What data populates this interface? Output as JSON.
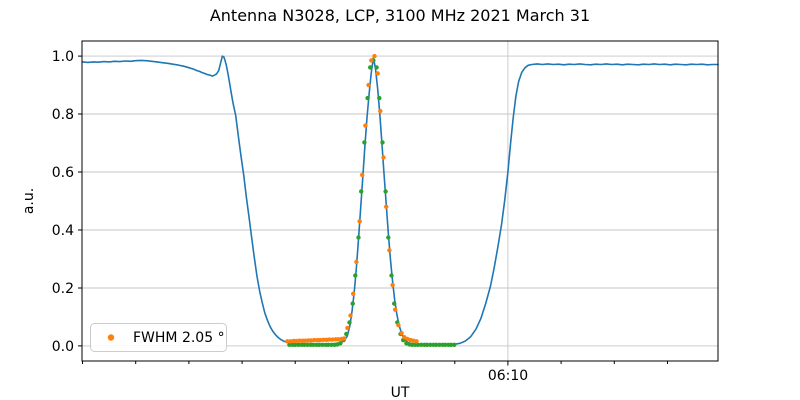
{
  "chart_data": {
    "type": "line",
    "title": "Antenna N3028, LCP, 3100 MHz 2021 March 31",
    "xlabel": "UT",
    "ylabel": "a.u.",
    "x_unit": "minutes after 06:00 UT",
    "xlim": [
      1.99,
      13.95
    ],
    "ylim": [
      -0.052,
      1.052
    ],
    "grid": true,
    "x_ticks_minutes": [
      2,
      3,
      4,
      5,
      6,
      7,
      8,
      9,
      10,
      11,
      12,
      13
    ],
    "x_major_tick": {
      "minute": 10,
      "label": "06:10"
    },
    "y_ticks": [
      0.0,
      0.2,
      0.4,
      0.6,
      0.8,
      1.0
    ],
    "y_tick_labels": [
      "0.0",
      "0.2",
      "0.4",
      "0.6",
      "0.8",
      "1.0"
    ],
    "legend": {
      "label": "FWHM 2.05 °",
      "marker_color": "#ff7f0e",
      "position": "lower left"
    },
    "colors": {
      "signal": "#1f77b4",
      "fit_samples": "#2ca02c",
      "measured_samples": "#ff7f0e",
      "grid": "#c6c6c6",
      "spine": "#000000"
    },
    "series": [
      {
        "name": "drift-scan-signal",
        "kind": "line",
        "color": "#1f77b4",
        "points": [
          [
            2.0,
            0.98
          ],
          [
            2.1,
            0.978
          ],
          [
            2.2,
            0.98
          ],
          [
            2.3,
            0.979
          ],
          [
            2.4,
            0.981
          ],
          [
            2.5,
            0.98
          ],
          [
            2.6,
            0.982
          ],
          [
            2.7,
            0.981
          ],
          [
            2.8,
            0.983
          ],
          [
            2.9,
            0.982
          ],
          [
            3.0,
            0.984
          ],
          [
            3.1,
            0.985
          ],
          [
            3.2,
            0.984
          ],
          [
            3.3,
            0.982
          ],
          [
            3.4,
            0.98
          ],
          [
            3.5,
            0.977
          ],
          [
            3.6,
            0.975
          ],
          [
            3.7,
            0.972
          ],
          [
            3.8,
            0.969
          ],
          [
            3.9,
            0.965
          ],
          [
            4.0,
            0.96
          ],
          [
            4.05,
            0.957
          ],
          [
            4.1,
            0.954
          ],
          [
            4.15,
            0.95
          ],
          [
            4.2,
            0.947
          ],
          [
            4.25,
            0.943
          ],
          [
            4.3,
            0.94
          ],
          [
            4.35,
            0.936
          ],
          [
            4.4,
            0.934
          ],
          [
            4.44,
            0.931
          ],
          [
            4.48,
            0.934
          ],
          [
            4.52,
            0.938
          ],
          [
            4.56,
            0.95
          ],
          [
            4.59,
            0.972
          ],
          [
            4.63,
            1.0
          ],
          [
            4.66,
            0.996
          ],
          [
            4.7,
            0.972
          ],
          [
            4.74,
            0.935
          ],
          [
            4.79,
            0.88
          ],
          [
            4.83,
            0.838
          ],
          [
            4.88,
            0.795
          ],
          [
            4.93,
            0.725
          ],
          [
            4.98,
            0.655
          ],
          [
            5.03,
            0.59
          ],
          [
            5.08,
            0.515
          ],
          [
            5.13,
            0.445
          ],
          [
            5.18,
            0.375
          ],
          [
            5.23,
            0.305
          ],
          [
            5.28,
            0.24
          ],
          [
            5.33,
            0.19
          ],
          [
            5.38,
            0.148
          ],
          [
            5.43,
            0.113
          ],
          [
            5.48,
            0.087
          ],
          [
            5.53,
            0.066
          ],
          [
            5.58,
            0.05
          ],
          [
            5.63,
            0.038
          ],
          [
            5.68,
            0.029
          ],
          [
            5.73,
            0.022
          ],
          [
            5.78,
            0.017
          ],
          [
            5.83,
            0.013
          ],
          [
            5.88,
            0.01
          ],
          [
            5.95,
            0.008
          ],
          [
            6.05,
            0.007
          ],
          [
            6.15,
            0.006
          ],
          [
            6.25,
            0.005
          ],
          [
            6.35,
            0.005
          ],
          [
            6.45,
            0.005
          ],
          [
            6.55,
            0.006
          ],
          [
            6.65,
            0.007
          ],
          [
            6.75,
            0.008
          ],
          [
            6.82,
            0.01
          ],
          [
            6.88,
            0.014
          ],
          [
            6.93,
            0.02
          ],
          [
            6.98,
            0.035
          ],
          [
            7.03,
            0.072
          ],
          [
            7.07,
            0.122
          ],
          [
            7.11,
            0.188
          ],
          [
            7.15,
            0.27
          ],
          [
            7.19,
            0.368
          ],
          [
            7.23,
            0.472
          ],
          [
            7.27,
            0.582
          ],
          [
            7.31,
            0.69
          ],
          [
            7.35,
            0.788
          ],
          [
            7.39,
            0.872
          ],
          [
            7.43,
            0.944
          ],
          [
            7.47,
            0.995
          ],
          [
            7.51,
            0.956
          ],
          [
            7.55,
            0.886
          ],
          [
            7.59,
            0.8
          ],
          [
            7.63,
            0.7
          ],
          [
            7.67,
            0.595
          ],
          [
            7.71,
            0.49
          ],
          [
            7.75,
            0.39
          ],
          [
            7.79,
            0.3
          ],
          [
            7.83,
            0.222
          ],
          [
            7.87,
            0.158
          ],
          [
            7.91,
            0.11
          ],
          [
            7.95,
            0.074
          ],
          [
            7.99,
            0.048
          ],
          [
            8.03,
            0.03
          ],
          [
            8.08,
            0.018
          ],
          [
            8.13,
            0.011
          ],
          [
            8.2,
            0.007
          ],
          [
            8.3,
            0.005
          ],
          [
            8.45,
            0.004
          ],
          [
            8.6,
            0.004
          ],
          [
            8.75,
            0.004
          ],
          [
            8.9,
            0.005
          ],
          [
            9.0,
            0.006
          ],
          [
            9.1,
            0.009
          ],
          [
            9.2,
            0.017
          ],
          [
            9.3,
            0.032
          ],
          [
            9.4,
            0.058
          ],
          [
            9.49,
            0.094
          ],
          [
            9.58,
            0.145
          ],
          [
            9.67,
            0.205
          ],
          [
            9.74,
            0.268
          ],
          [
            9.81,
            0.34
          ],
          [
            9.88,
            0.42
          ],
          [
            9.94,
            0.505
          ],
          [
            10.0,
            0.6
          ],
          [
            10.05,
            0.7
          ],
          [
            10.1,
            0.79
          ],
          [
            10.15,
            0.862
          ],
          [
            10.2,
            0.912
          ],
          [
            10.26,
            0.944
          ],
          [
            10.32,
            0.96
          ],
          [
            10.38,
            0.968
          ],
          [
            10.45,
            0.971
          ],
          [
            10.55,
            0.973
          ],
          [
            10.65,
            0.971
          ],
          [
            10.75,
            0.973
          ],
          [
            10.85,
            0.971
          ],
          [
            10.95,
            0.972
          ],
          [
            11.05,
            0.97
          ],
          [
            11.15,
            0.972
          ],
          [
            11.25,
            0.971
          ],
          [
            11.35,
            0.973
          ],
          [
            11.45,
            0.971
          ],
          [
            11.55,
            0.97
          ],
          [
            11.65,
            0.972
          ],
          [
            11.75,
            0.971
          ],
          [
            11.85,
            0.973
          ],
          [
            11.95,
            0.971
          ],
          [
            12.05,
            0.972
          ],
          [
            12.15,
            0.97
          ],
          [
            12.25,
            0.972
          ],
          [
            12.35,
            0.971
          ],
          [
            12.45,
            0.97
          ],
          [
            12.55,
            0.972
          ],
          [
            12.65,
            0.971
          ],
          [
            12.75,
            0.973
          ],
          [
            12.85,
            0.971
          ],
          [
            12.95,
            0.972
          ],
          [
            13.05,
            0.97
          ],
          [
            13.15,
            0.972
          ],
          [
            13.25,
            0.971
          ],
          [
            13.35,
            0.97
          ],
          [
            13.45,
            0.972
          ],
          [
            13.55,
            0.971
          ],
          [
            13.65,
            0.972
          ],
          [
            13.75,
            0.97
          ],
          [
            13.85,
            0.971
          ],
          [
            13.95,
            0.971
          ]
        ]
      },
      {
        "name": "gaussian-fit-samples",
        "kind": "scatter",
        "color": "#2ca02c",
        "points": [
          [
            5.89,
            0.004
          ],
          [
            5.95,
            0.004
          ],
          [
            6.0,
            0.004
          ],
          [
            6.06,
            0.004
          ],
          [
            6.12,
            0.004
          ],
          [
            6.17,
            0.004
          ],
          [
            6.23,
            0.004
          ],
          [
            6.29,
            0.004
          ],
          [
            6.34,
            0.004
          ],
          [
            6.4,
            0.004
          ],
          [
            6.45,
            0.004
          ],
          [
            6.51,
            0.004
          ],
          [
            6.57,
            0.004
          ],
          [
            6.62,
            0.004
          ],
          [
            6.68,
            0.004
          ],
          [
            6.74,
            0.004
          ],
          [
            6.79,
            0.005
          ],
          [
            6.85,
            0.009
          ],
          [
            6.91,
            0.02
          ],
          [
            6.96,
            0.041
          ],
          [
            7.02,
            0.081
          ],
          [
            7.08,
            0.146
          ],
          [
            7.13,
            0.243
          ],
          [
            7.19,
            0.374
          ],
          [
            7.24,
            0.533
          ],
          [
            7.3,
            0.702
          ],
          [
            7.36,
            0.855
          ],
          [
            7.41,
            0.961
          ],
          [
            7.47,
            0.985
          ],
          [
            7.53,
            0.961
          ],
          [
            7.58,
            0.855
          ],
          [
            7.64,
            0.702
          ],
          [
            7.7,
            0.533
          ],
          [
            7.75,
            0.374
          ],
          [
            7.81,
            0.243
          ],
          [
            7.86,
            0.146
          ],
          [
            7.92,
            0.081
          ],
          [
            7.98,
            0.041
          ],
          [
            8.03,
            0.02
          ],
          [
            8.09,
            0.009
          ],
          [
            8.15,
            0.005
          ],
          [
            8.2,
            0.004
          ],
          [
            8.26,
            0.004
          ],
          [
            8.31,
            0.004
          ],
          [
            8.37,
            0.004
          ],
          [
            8.43,
            0.004
          ],
          [
            8.48,
            0.004
          ],
          [
            8.54,
            0.004
          ],
          [
            8.6,
            0.004
          ],
          [
            8.65,
            0.004
          ],
          [
            8.71,
            0.004
          ],
          [
            8.77,
            0.004
          ],
          [
            8.82,
            0.004
          ],
          [
            8.88,
            0.004
          ],
          [
            8.93,
            0.004
          ],
          [
            8.99,
            0.004
          ]
        ]
      },
      {
        "name": "measured-samples",
        "kind": "scatter",
        "color": "#ff7f0e",
        "points": [
          [
            5.85,
            0.016
          ],
          [
            5.91,
            0.016
          ],
          [
            5.97,
            0.017
          ],
          [
            6.02,
            0.017
          ],
          [
            6.08,
            0.018
          ],
          [
            6.14,
            0.018
          ],
          [
            6.19,
            0.018
          ],
          [
            6.25,
            0.019
          ],
          [
            6.3,
            0.019
          ],
          [
            6.36,
            0.02
          ],
          [
            6.42,
            0.02
          ],
          [
            6.47,
            0.02
          ],
          [
            6.53,
            0.021
          ],
          [
            6.59,
            0.021
          ],
          [
            6.64,
            0.022
          ],
          [
            6.7,
            0.022
          ],
          [
            6.76,
            0.023
          ],
          [
            6.81,
            0.023
          ],
          [
            6.87,
            0.024
          ],
          [
            6.92,
            0.026
          ],
          [
            6.98,
            0.062
          ],
          [
            7.04,
            0.105
          ],
          [
            7.09,
            0.18
          ],
          [
            7.15,
            0.29
          ],
          [
            7.21,
            0.43
          ],
          [
            7.26,
            0.59
          ],
          [
            7.32,
            0.76
          ],
          [
            7.38,
            0.9
          ],
          [
            7.43,
            0.985
          ],
          [
            7.49,
            1.0
          ],
          [
            7.55,
            0.94
          ],
          [
            7.6,
            0.81
          ],
          [
            7.66,
            0.65
          ],
          [
            7.71,
            0.48
          ],
          [
            7.77,
            0.33
          ],
          [
            7.83,
            0.21
          ],
          [
            7.88,
            0.125
          ],
          [
            7.94,
            0.072
          ],
          [
            8.0,
            0.044
          ],
          [
            8.05,
            0.03
          ],
          [
            8.11,
            0.024
          ],
          [
            8.17,
            0.02
          ],
          [
            8.22,
            0.018
          ],
          [
            8.28,
            0.016
          ]
        ]
      }
    ]
  }
}
